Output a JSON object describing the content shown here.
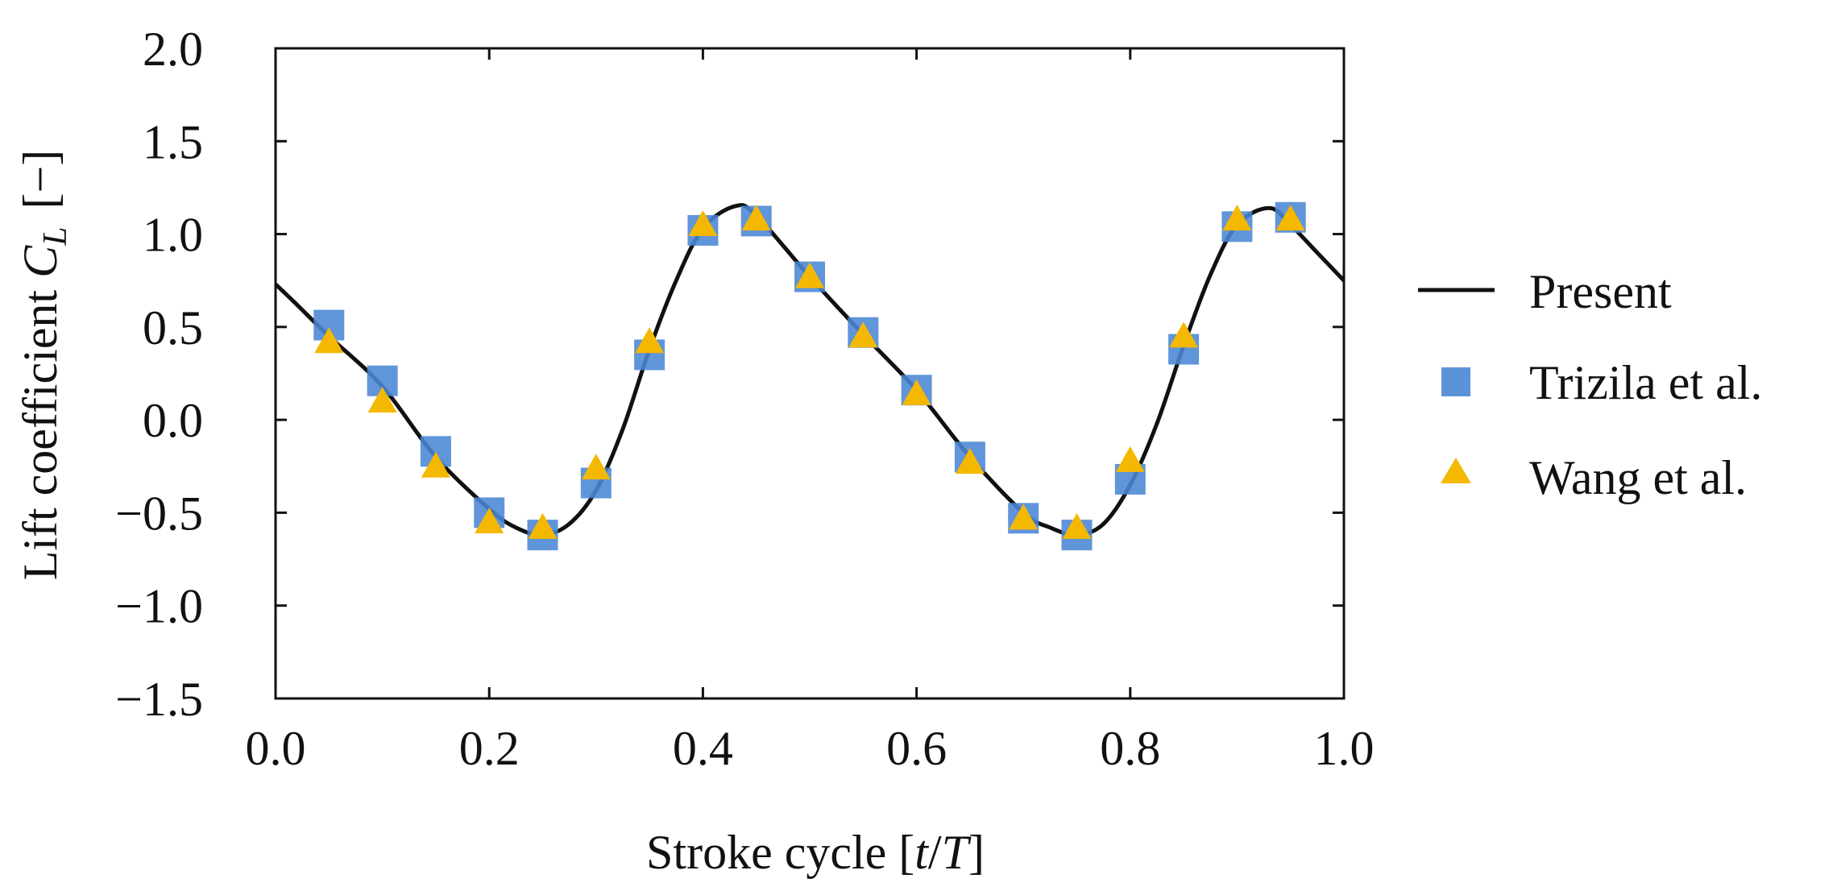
{
  "chart_data": {
    "type": "line",
    "title": "",
    "xlabel": "Stroke cycle [t/T]",
    "xlabel_parts": {
      "text": "Stroke cycle [",
      "var1": "t",
      "sep": "/",
      "var2": "T",
      "close": "]"
    },
    "ylabel": "Lift coefficient C_L [−]",
    "ylabel_parts": {
      "text": "Lift coefficient ",
      "var": "C",
      "sub": "L",
      "unit": "[−]"
    },
    "xlim": [
      0.0,
      1.0
    ],
    "ylim": [
      -1.5,
      2.0
    ],
    "xticks": [
      0.0,
      0.2,
      0.4,
      0.6,
      0.8,
      1.0
    ],
    "xtick_labels": [
      "0.0",
      "0.2",
      "0.4",
      "0.6",
      "0.8",
      "1.0"
    ],
    "yticks": [
      -1.5,
      -1.0,
      -0.5,
      0.0,
      0.5,
      1.0,
      1.5,
      2.0
    ],
    "ytick_labels": [
      "−1.5",
      "−1.0",
      "−0.5",
      "0.0",
      "0.5",
      "1.0",
      "1.5",
      "2.0"
    ],
    "grid": false,
    "legend_position": "right-outside",
    "series": [
      {
        "name": "Present",
        "style": "line",
        "color": "#111111",
        "x": [
          0.0,
          0.02,
          0.05,
          0.1,
          0.15,
          0.2,
          0.225,
          0.25,
          0.275,
          0.3,
          0.325,
          0.35,
          0.375,
          0.4,
          0.43,
          0.45,
          0.5,
          0.55,
          0.6,
          0.65,
          0.7,
          0.725,
          0.75,
          0.775,
          0.8,
          0.825,
          0.85,
          0.875,
          0.9,
          0.93,
          0.95,
          0.975,
          1.0
        ],
        "y": [
          0.73,
          0.62,
          0.45,
          0.18,
          -0.2,
          -0.48,
          -0.58,
          -0.62,
          -0.56,
          -0.38,
          -0.05,
          0.38,
          0.75,
          1.03,
          1.15,
          1.1,
          0.77,
          0.46,
          0.16,
          -0.2,
          -0.5,
          -0.58,
          -0.62,
          -0.56,
          -0.35,
          -0.02,
          0.4,
          0.78,
          1.05,
          1.14,
          1.05,
          0.9,
          0.75
        ]
      },
      {
        "name": "Trizila et al.",
        "style": "square",
        "color": "#4a86d4",
        "x": [
          0.05,
          0.1,
          0.15,
          0.2,
          0.25,
          0.3,
          0.35,
          0.4,
          0.45,
          0.5,
          0.55,
          0.6,
          0.65,
          0.7,
          0.75,
          0.8,
          0.85,
          0.9,
          0.95
        ],
        "y": [
          0.51,
          0.21,
          -0.17,
          -0.5,
          -0.62,
          -0.34,
          0.35,
          1.02,
          1.07,
          0.77,
          0.47,
          0.16,
          -0.2,
          -0.53,
          -0.62,
          -0.32,
          0.38,
          1.04,
          1.09
        ]
      },
      {
        "name": "Wang et al.",
        "style": "triangle",
        "color": "#f5b800",
        "x": [
          0.05,
          0.1,
          0.15,
          0.2,
          0.25,
          0.3,
          0.35,
          0.4,
          0.45,
          0.5,
          0.55,
          0.6,
          0.65,
          0.7,
          0.75,
          0.8,
          0.85,
          0.9,
          0.95
        ],
        "y": [
          0.42,
          0.1,
          -0.25,
          -0.55,
          -0.58,
          -0.26,
          0.42,
          1.05,
          1.08,
          0.77,
          0.45,
          0.14,
          -0.23,
          -0.53,
          -0.58,
          -0.22,
          0.45,
          1.08,
          1.08
        ]
      }
    ]
  }
}
